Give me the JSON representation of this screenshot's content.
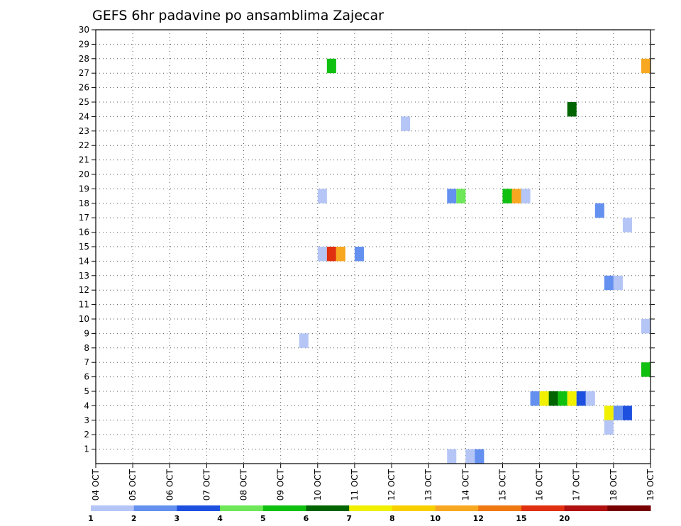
{
  "chart_data": {
    "type": "heatmap",
    "title": "GEFS 6hr padavine po ansamblima Zajecar",
    "xlabel": "",
    "ylabel": "",
    "x_ticks": [
      "04 OCT",
      "05 OCT",
      "06 OCT",
      "07 OCT",
      "08 OCT",
      "09 OCT",
      "10 OCT",
      "11 OCT",
      "12 OCT",
      "13 OCT",
      "14 OCT",
      "15 OCT",
      "16 OCT",
      "17 OCT",
      "18 OCT",
      "19 OCT"
    ],
    "y_ticks": [
      1,
      2,
      3,
      4,
      5,
      6,
      7,
      8,
      9,
      10,
      11,
      12,
      13,
      14,
      15,
      16,
      17,
      18,
      19,
      20,
      21,
      22,
      23,
      24,
      25,
      26,
      27,
      28,
      29,
      30
    ],
    "ylim": [
      0,
      30
    ],
    "grid": true,
    "time_step_hours": 6,
    "colorbar": {
      "labels": [
        "1",
        "2",
        "3",
        "4",
        "5",
        "6",
        "7",
        "8",
        "10",
        "12",
        "15",
        "20"
      ],
      "colors": [
        "#b4c5f6",
        "#6490f0",
        "#1e50e0",
        "#6ee858",
        "#10c010",
        "#006400",
        "#f0f000",
        "#f8d000",
        "#f8a820",
        "#f07810",
        "#e03010",
        "#b01010",
        "#780000"
      ]
    },
    "cells": [
      {
        "day": "10 OCT",
        "hour": 6,
        "member": 28,
        "value": 5
      },
      {
        "day": "18 OCT",
        "hour": 18,
        "member": 28,
        "value": 10
      },
      {
        "day": "16 OCT",
        "hour": 18,
        "member": 25,
        "value": 6
      },
      {
        "day": "12 OCT",
        "hour": 6,
        "member": 24,
        "value": 1
      },
      {
        "day": "10 OCT",
        "hour": 0,
        "member": 19,
        "value": 1
      },
      {
        "day": "13 OCT",
        "hour": 12,
        "member": 19,
        "value": 2
      },
      {
        "day": "13 OCT",
        "hour": 18,
        "member": 19,
        "value": 4
      },
      {
        "day": "15 OCT",
        "hour": 0,
        "member": 19,
        "value": 5
      },
      {
        "day": "15 OCT",
        "hour": 6,
        "member": 19,
        "value": 10
      },
      {
        "day": "15 OCT",
        "hour": 12,
        "member": 19,
        "value": 1
      },
      {
        "day": "17 OCT",
        "hour": 12,
        "member": 18,
        "value": 2
      },
      {
        "day": "18 OCT",
        "hour": 6,
        "member": 17,
        "value": 1
      },
      {
        "day": "10 OCT",
        "hour": 0,
        "member": 15,
        "value": 1
      },
      {
        "day": "10 OCT",
        "hour": 6,
        "member": 15,
        "value": 15
      },
      {
        "day": "10 OCT",
        "hour": 12,
        "member": 15,
        "value": 10
      },
      {
        "day": "11 OCT",
        "hour": 0,
        "member": 15,
        "value": 2
      },
      {
        "day": "17 OCT",
        "hour": 18,
        "member": 13,
        "value": 2
      },
      {
        "day": "18 OCT",
        "hour": 0,
        "member": 13,
        "value": 1
      },
      {
        "day": "18 OCT",
        "hour": 18,
        "member": 10,
        "value": 1
      },
      {
        "day": "09 OCT",
        "hour": 12,
        "member": 9,
        "value": 1
      },
      {
        "day": "18 OCT",
        "hour": 18,
        "member": 7,
        "value": 5
      },
      {
        "day": "15 OCT",
        "hour": 18,
        "member": 5,
        "value": 2
      },
      {
        "day": "16 OCT",
        "hour": 0,
        "member": 5,
        "value": 7
      },
      {
        "day": "16 OCT",
        "hour": 6,
        "member": 5,
        "value": 6
      },
      {
        "day": "16 OCT",
        "hour": 12,
        "member": 5,
        "value": 5
      },
      {
        "day": "16 OCT",
        "hour": 18,
        "member": 5,
        "value": 7
      },
      {
        "day": "17 OCT",
        "hour": 0,
        "member": 5,
        "value": 3
      },
      {
        "day": "17 OCT",
        "hour": 6,
        "member": 5,
        "value": 1
      },
      {
        "day": "17 OCT",
        "hour": 18,
        "member": 4,
        "value": 7
      },
      {
        "day": "18 OCT",
        "hour": 0,
        "member": 4,
        "value": 2
      },
      {
        "day": "18 OCT",
        "hour": 6,
        "member": 4,
        "value": 3
      },
      {
        "day": "17 OCT",
        "hour": 18,
        "member": 3,
        "value": 1
      },
      {
        "day": "13 OCT",
        "hour": 12,
        "member": 1,
        "value": 1
      },
      {
        "day": "14 OCT",
        "hour": 0,
        "member": 1,
        "value": 1
      },
      {
        "day": "14 OCT",
        "hour": 6,
        "member": 1,
        "value": 2
      }
    ]
  }
}
